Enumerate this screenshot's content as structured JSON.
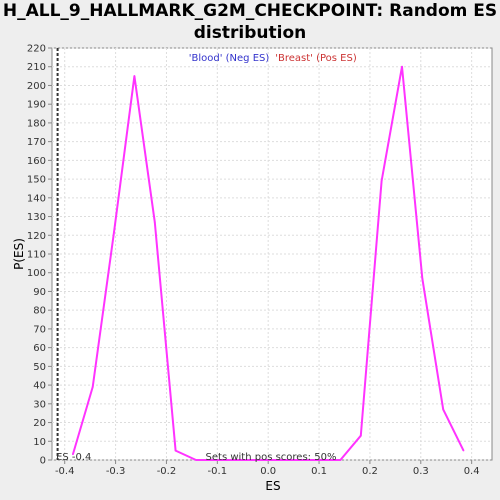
{
  "chart_data": {
    "type": "line",
    "title_line1": "H_ALL_9_HALLMARK_G2M_CHECKPOINT: Random ES",
    "title_line2": "distribution",
    "xlabel": "ES",
    "ylabel": "P(ES)",
    "xlim": [
      -0.425,
      0.44
    ],
    "ylim": [
      0,
      220
    ],
    "x_ticks": [
      -0.4,
      -0.3,
      -0.2,
      -0.1,
      0.0,
      0.1,
      0.2,
      0.3,
      0.4
    ],
    "x_tick_labels": [
      "-0.4",
      "-0.3",
      "-0.2",
      "-0.1",
      "0.0",
      "0.1",
      "0.2",
      "0.3",
      "0.4"
    ],
    "y_ticks": [
      0,
      10,
      20,
      30,
      40,
      50,
      60,
      70,
      80,
      90,
      100,
      110,
      120,
      130,
      140,
      150,
      160,
      170,
      180,
      190,
      200,
      210,
      220
    ],
    "grid": true,
    "series": [
      {
        "color": "#ff33ff",
        "x": [
          -0.384,
          -0.345,
          -0.303,
          -0.263,
          -0.223,
          -0.182,
          -0.142,
          -0.101,
          -0.061,
          -0.02,
          0.02,
          0.061,
          0.101,
          0.142,
          0.182,
          0.223,
          0.263,
          0.303,
          0.344,
          0.384
        ],
        "values": [
          3,
          39,
          122,
          205,
          127,
          5,
          0,
          0,
          0,
          0,
          0,
          0,
          0,
          0,
          13,
          149,
          210,
          97,
          27,
          5
        ]
      }
    ],
    "observed_es": {
      "x": -0.414,
      "label": "ES -0.4",
      "color": "#333333"
    },
    "legend": {
      "neg": {
        "text": "'Blood' (Neg ES)",
        "color": "#3333cc"
      },
      "pos": {
        "text": "'Breast' (Pos ES)",
        "color": "#cc3333"
      },
      "placement": "top-center"
    },
    "annotation": "Sets with pos scores: 50%"
  }
}
